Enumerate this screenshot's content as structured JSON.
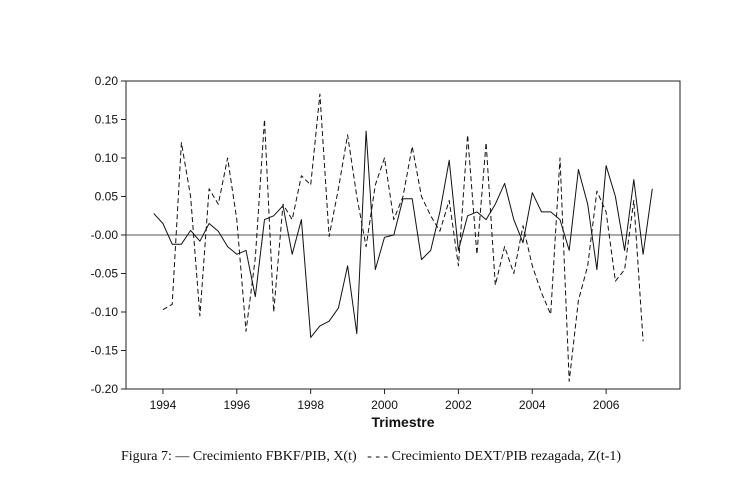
{
  "chart_data": {
    "type": "line",
    "xlabel": "Trimestre",
    "ylabel": "",
    "xlim": [
      1993.0,
      2008.0
    ],
    "ylim": [
      -0.2,
      0.2
    ],
    "x_ticks": [
      1994,
      1996,
      1998,
      2000,
      2002,
      2004,
      2006
    ],
    "x_tick_labels": [
      "1994",
      "1996",
      "1998",
      "2000",
      "2002",
      "2004",
      "2006"
    ],
    "y_ticks": [
      0.2,
      0.15,
      0.1,
      0.05,
      -0.0,
      -0.05,
      -0.1,
      -0.15,
      -0.2
    ],
    "y_tick_labels": [
      "0.20",
      "0.15",
      "0.10",
      "0.05",
      "-0.00",
      "-0.05",
      "-0.10",
      "-0.15",
      "-0.20"
    ],
    "reference_line": 0,
    "series": [
      {
        "name": "Crecimiento FBKF/PIB, X(t)",
        "style": "solid",
        "start": 1993.75,
        "step": 0.25,
        "values": [
          0.028,
          0.015,
          -0.012,
          -0.012,
          0.006,
          -0.008,
          0.015,
          0.005,
          -0.015,
          -0.025,
          -0.02,
          -0.08,
          0.02,
          0.025,
          0.038,
          -0.025,
          0.02,
          -0.133,
          -0.118,
          -0.112,
          -0.095,
          -0.04,
          -0.128,
          0.135,
          -0.045,
          -0.003,
          0.0,
          0.047,
          0.047,
          -0.032,
          -0.02,
          0.03,
          0.097,
          -0.02,
          0.025,
          0.03,
          0.02,
          0.04,
          0.067,
          0.02,
          -0.01,
          0.055,
          0.03,
          0.03,
          0.02,
          -0.02,
          0.085,
          0.04,
          -0.045,
          0.09,
          0.05,
          -0.02,
          0.072,
          -0.025,
          0.06
        ]
      },
      {
        "name": "Crecimiento DEXT/PIB rezagada, Z(t-1)",
        "style": "dashed",
        "start": 1994.0,
        "step": 0.25,
        "values": [
          -0.097,
          -0.09,
          0.12,
          0.05,
          -0.105,
          0.06,
          0.04,
          0.1,
          0.02,
          -0.125,
          -0.03,
          0.15,
          -0.1,
          0.04,
          0.02,
          0.077,
          0.065,
          0.183,
          -0.002,
          0.06,
          0.13,
          0.05,
          -0.015,
          0.065,
          0.1,
          0.02,
          0.05,
          0.115,
          0.05,
          0.025,
          0.005,
          0.045,
          -0.04,
          0.13,
          -0.025,
          0.12,
          -0.065,
          -0.015,
          -0.05,
          0.012,
          -0.04,
          -0.075,
          -0.103,
          0.1,
          -0.19,
          -0.085,
          -0.04,
          0.057,
          0.03,
          -0.06,
          -0.045,
          0.045,
          -0.138
        ]
      }
    ],
    "legend": "below",
    "caption": {
      "prefix": "Figura 7:",
      "solid_symbol": "—",
      "solid_label": "Crecimiento FBKF/PIB, X(t)",
      "dashed_symbol": "- - -",
      "dashed_label": "Crecimiento DEXT/PIB rezagada, Z(t-1)"
    }
  }
}
